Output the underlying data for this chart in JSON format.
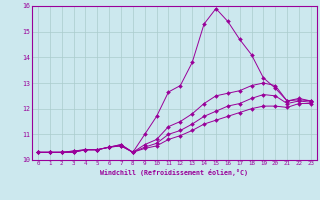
{
  "xlabel": "Windchill (Refroidissement éolien,°C)",
  "bg_color": "#cce8ee",
  "line_color": "#990099",
  "grid_color": "#aacccc",
  "xlim": [
    -0.5,
    23.5
  ],
  "ylim": [
    10,
    16
  ],
  "yticks": [
    10,
    11,
    12,
    13,
    14,
    15,
    16
  ],
  "xticks": [
    0,
    1,
    2,
    3,
    4,
    5,
    6,
    7,
    8,
    9,
    10,
    11,
    12,
    13,
    14,
    15,
    16,
    17,
    18,
    19,
    20,
    21,
    22,
    23
  ],
  "series": [
    [
      10.3,
      10.3,
      10.3,
      10.3,
      10.4,
      10.4,
      10.5,
      10.6,
      10.3,
      11.0,
      11.7,
      12.65,
      12.9,
      13.8,
      15.3,
      15.9,
      15.4,
      14.7,
      14.1,
      13.2,
      12.8,
      12.3,
      12.4,
      12.3
    ],
    [
      10.3,
      10.3,
      10.3,
      10.3,
      10.4,
      10.4,
      10.5,
      10.6,
      10.3,
      10.6,
      10.8,
      11.3,
      11.5,
      11.8,
      12.2,
      12.5,
      12.6,
      12.7,
      12.9,
      13.0,
      12.9,
      12.3,
      12.35,
      12.3
    ],
    [
      10.3,
      10.3,
      10.3,
      10.35,
      10.4,
      10.4,
      10.5,
      10.55,
      10.3,
      10.5,
      10.65,
      11.0,
      11.15,
      11.4,
      11.7,
      11.9,
      12.1,
      12.2,
      12.4,
      12.55,
      12.5,
      12.2,
      12.3,
      12.25
    ],
    [
      10.3,
      10.3,
      10.3,
      10.35,
      10.4,
      10.4,
      10.5,
      10.55,
      10.3,
      10.45,
      10.55,
      10.8,
      10.95,
      11.15,
      11.4,
      11.55,
      11.7,
      11.85,
      12.0,
      12.1,
      12.1,
      12.05,
      12.2,
      12.2
    ]
  ]
}
